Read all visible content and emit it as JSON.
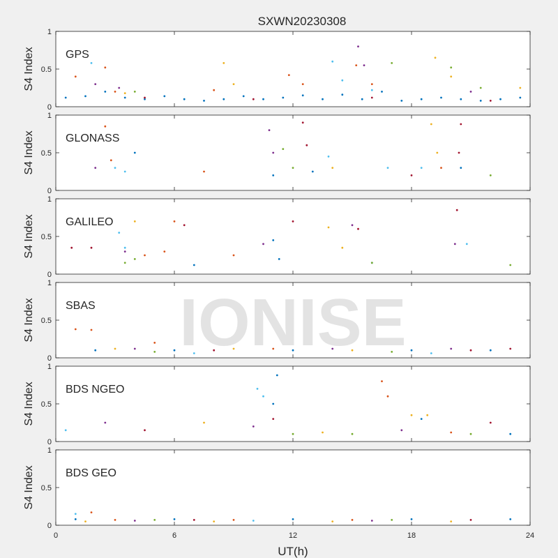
{
  "figure_title": "SXWN20230308",
  "watermark": "IONISE",
  "xlabel": "UT(h)",
  "x_ticks": [
    "0",
    "6",
    "12",
    "18",
    "24"
  ],
  "colors": [
    "#0072bd",
    "#d95319",
    "#edb120",
    "#7e2f8e",
    "#77ac30",
    "#4dbeee",
    "#a2142f"
  ],
  "chart_data": [
    {
      "type": "scatter",
      "panel": "GPS",
      "ylabel": "S4 Index",
      "ylim": [
        0,
        1
      ],
      "xlim": [
        0,
        24
      ],
      "y_ticks": [
        "0",
        "0.5",
        "1"
      ],
      "series": [
        {
          "values": [
            [
              0.5,
              0.12
            ],
            [
              1.5,
              0.14
            ],
            [
              2.5,
              0.2
            ],
            [
              3.5,
              0.12
            ],
            [
              4.5,
              0.1
            ],
            [
              5.5,
              0.14
            ],
            [
              6.5,
              0.1
            ],
            [
              7.5,
              0.08
            ],
            [
              8.5,
              0.1
            ],
            [
              9.5,
              0.14
            ],
            [
              10.5,
              0.1
            ],
            [
              11.5,
              0.12
            ],
            [
              12.5,
              0.15
            ],
            [
              13.5,
              0.1
            ],
            [
              14.5,
              0.16
            ],
            [
              15.5,
              0.1
            ],
            [
              16.5,
              0.2
            ],
            [
              17.5,
              0.08
            ],
            [
              18.5,
              0.1
            ],
            [
              19.5,
              0.12
            ],
            [
              20.5,
              0.1
            ],
            [
              21.5,
              0.08
            ],
            [
              22.5,
              0.1
            ],
            [
              23.5,
              0.12
            ]
          ]
        },
        {
          "values": [
            [
              1.0,
              0.4
            ],
            [
              2.5,
              0.52
            ],
            [
              3.0,
              0.2
            ],
            [
              8.0,
              0.22
            ],
            [
              11.8,
              0.42
            ],
            [
              12.5,
              0.3
            ],
            [
              15.2,
              0.55
            ],
            [
              16.0,
              0.3
            ]
          ]
        },
        {
          "values": [
            [
              3.5,
              0.18
            ],
            [
              8.5,
              0.58
            ],
            [
              9.0,
              0.3
            ],
            [
              19.2,
              0.65
            ],
            [
              20.0,
              0.4
            ],
            [
              23.5,
              0.25
            ]
          ]
        },
        {
          "values": [
            [
              2.0,
              0.3
            ],
            [
              3.2,
              0.25
            ],
            [
              15.3,
              0.8
            ],
            [
              15.6,
              0.55
            ],
            [
              21.0,
              0.2
            ]
          ]
        },
        {
          "values": [
            [
              4.0,
              0.2
            ],
            [
              17.0,
              0.58
            ],
            [
              20.0,
              0.52
            ],
            [
              21.5,
              0.25
            ]
          ]
        },
        {
          "values": [
            [
              1.8,
              0.58
            ],
            [
              14.0,
              0.6
            ],
            [
              14.5,
              0.35
            ],
            [
              16.0,
              0.22
            ]
          ]
        },
        {
          "values": [
            [
              4.5,
              0.12
            ],
            [
              10.0,
              0.1
            ],
            [
              16.0,
              0.12
            ],
            [
              22.0,
              0.08
            ]
          ]
        }
      ]
    },
    {
      "type": "scatter",
      "panel": "GLONASS",
      "ylabel": "S4 Index",
      "ylim": [
        0,
        1
      ],
      "xlim": [
        0,
        24
      ],
      "y_ticks": [
        "0",
        "0.5",
        "1"
      ],
      "series": [
        {
          "values": [
            [
              4.0,
              0.5
            ],
            [
              13.0,
              0.25
            ],
            [
              20.5,
              0.3
            ],
            [
              11.0,
              0.2
            ]
          ]
        },
        {
          "values": [
            [
              2.5,
              0.85
            ],
            [
              2.8,
              0.4
            ],
            [
              7.5,
              0.25
            ],
            [
              19.5,
              0.3
            ]
          ]
        },
        {
          "values": [
            [
              19.0,
              0.88
            ],
            [
              19.3,
              0.5
            ],
            [
              14.0,
              0.3
            ]
          ]
        },
        {
          "values": [
            [
              10.8,
              0.8
            ],
            [
              11.0,
              0.5
            ],
            [
              2.0,
              0.3
            ]
          ]
        },
        {
          "values": [
            [
              11.5,
              0.55
            ],
            [
              12.0,
              0.3
            ],
            [
              22.0,
              0.2
            ]
          ]
        },
        {
          "values": [
            [
              3.0,
              0.3
            ],
            [
              3.5,
              0.25
            ],
            [
              13.8,
              0.45
            ],
            [
              16.8,
              0.3
            ],
            [
              18.5,
              0.3
            ]
          ]
        },
        {
          "values": [
            [
              12.5,
              0.9
            ],
            [
              12.7,
              0.6
            ],
            [
              20.5,
              0.88
            ],
            [
              20.4,
              0.5
            ],
            [
              18.0,
              0.2
            ]
          ]
        }
      ]
    },
    {
      "type": "scatter",
      "panel": "GALILEO",
      "ylabel": "S4 Index",
      "ylim": [
        0,
        1
      ],
      "xlim": [
        0,
        24
      ],
      "y_ticks": [
        "0",
        "0.5",
        "1"
      ],
      "series": [
        {
          "values": [
            [
              7.0,
              0.12
            ],
            [
              11.0,
              0.45
            ],
            [
              11.3,
              0.2
            ],
            [
              16.0,
              0.15
            ]
          ]
        },
        {
          "values": [
            [
              4.5,
              0.25
            ],
            [
              5.5,
              0.3
            ],
            [
              6.0,
              0.7
            ],
            [
              9.0,
              0.25
            ]
          ]
        },
        {
          "values": [
            [
              4.0,
              0.7
            ],
            [
              13.8,
              0.62
            ],
            [
              14.5,
              0.35
            ]
          ]
        },
        {
          "values": [
            [
              3.5,
              0.3
            ],
            [
              10.5,
              0.4
            ],
            [
              15.0,
              0.65
            ],
            [
              20.2,
              0.4
            ]
          ]
        },
        {
          "values": [
            [
              3.5,
              0.15
            ],
            [
              4.0,
              0.2
            ],
            [
              16.0,
              0.15
            ],
            [
              23.0,
              0.12
            ]
          ]
        },
        {
          "values": [
            [
              3.2,
              0.55
            ],
            [
              3.5,
              0.35
            ],
            [
              20.8,
              0.4
            ]
          ]
        },
        {
          "values": [
            [
              0.8,
              0.35
            ],
            [
              1.8,
              0.35
            ],
            [
              6.5,
              0.65
            ],
            [
              12.0,
              0.7
            ],
            [
              15.3,
              0.6
            ],
            [
              20.3,
              0.85
            ]
          ]
        }
      ]
    },
    {
      "type": "scatter",
      "panel": "SBAS",
      "ylabel": "S4 Index",
      "ylim": [
        0,
        1
      ],
      "xlim": [
        0,
        24
      ],
      "y_ticks": [
        "0",
        "0.5",
        "1"
      ],
      "series": [
        {
          "values": [
            [
              2.0,
              0.1
            ],
            [
              6.0,
              0.1
            ],
            [
              12.0,
              0.1
            ],
            [
              18.0,
              0.1
            ],
            [
              22.0,
              0.1
            ]
          ]
        },
        {
          "values": [
            [
              1.0,
              0.38
            ],
            [
              1.8,
              0.37
            ],
            [
              5.0,
              0.2
            ],
            [
              11.0,
              0.12
            ]
          ]
        },
        {
          "values": [
            [
              3.0,
              0.12
            ],
            [
              9.0,
              0.12
            ],
            [
              15.0,
              0.1
            ]
          ]
        },
        {
          "values": [
            [
              4.0,
              0.12
            ],
            [
              14.0,
              0.12
            ],
            [
              20.0,
              0.12
            ]
          ]
        },
        {
          "values": [
            [
              5.0,
              0.08
            ],
            [
              17.0,
              0.08
            ]
          ]
        },
        {
          "values": [
            [
              7.0,
              0.06
            ],
            [
              19.0,
              0.06
            ]
          ]
        },
        {
          "values": [
            [
              8.0,
              0.1
            ],
            [
              21.0,
              0.1
            ],
            [
              23.0,
              0.12
            ]
          ]
        }
      ]
    },
    {
      "type": "scatter",
      "panel": "BDS NGEO",
      "ylabel": "S4 Index",
      "ylim": [
        0,
        1
      ],
      "xlim": [
        0,
        24
      ],
      "y_ticks": [
        "0",
        "0.5",
        "1"
      ],
      "series": [
        {
          "values": [
            [
              11.2,
              0.88
            ],
            [
              11.0,
              0.5
            ],
            [
              18.5,
              0.3
            ],
            [
              23.0,
              0.1
            ]
          ]
        },
        {
          "values": [
            [
              16.5,
              0.8
            ],
            [
              16.8,
              0.6
            ],
            [
              20.0,
              0.12
            ]
          ]
        },
        {
          "values": [
            [
              7.5,
              0.25
            ],
            [
              18.0,
              0.35
            ],
            [
              18.8,
              0.35
            ],
            [
              13.5,
              0.12
            ]
          ]
        },
        {
          "values": [
            [
              2.5,
              0.25
            ],
            [
              10.0,
              0.2
            ],
            [
              17.5,
              0.15
            ]
          ]
        },
        {
          "values": [
            [
              12.0,
              0.1
            ],
            [
              15.0,
              0.1
            ],
            [
              21.0,
              0.1
            ]
          ]
        },
        {
          "values": [
            [
              10.2,
              0.7
            ],
            [
              10.5,
              0.6
            ],
            [
              0.5,
              0.15
            ]
          ]
        },
        {
          "values": [
            [
              11.0,
              0.3
            ],
            [
              4.5,
              0.15
            ],
            [
              22.0,
              0.25
            ]
          ]
        }
      ]
    },
    {
      "type": "scatter",
      "panel": "BDS GEO",
      "ylabel": "S4 Index",
      "ylim": [
        0,
        1
      ],
      "xlim": [
        0,
        24
      ],
      "y_ticks": [
        "0",
        "0.5",
        "1"
      ],
      "series": [
        {
          "values": [
            [
              1.0,
              0.08
            ],
            [
              6.0,
              0.08
            ],
            [
              12.0,
              0.08
            ],
            [
              18.0,
              0.08
            ],
            [
              23.0,
              0.08
            ]
          ]
        },
        {
          "values": [
            [
              1.8,
              0.17
            ],
            [
              3.0,
              0.07
            ],
            [
              9.0,
              0.07
            ],
            [
              15.0,
              0.07
            ]
          ]
        },
        {
          "values": [
            [
              1.5,
              0.05
            ],
            [
              8.0,
              0.05
            ],
            [
              14.0,
              0.05
            ],
            [
              20.0,
              0.05
            ]
          ]
        },
        {
          "values": [
            [
              4.0,
              0.06
            ],
            [
              16.0,
              0.06
            ]
          ]
        },
        {
          "values": [
            [
              5.0,
              0.07
            ],
            [
              17.0,
              0.07
            ]
          ]
        },
        {
          "values": [
            [
              1.0,
              0.15
            ],
            [
              10.0,
              0.06
            ]
          ]
        },
        {
          "values": [
            [
              7.0,
              0.07
            ],
            [
              21.0,
              0.07
            ]
          ]
        }
      ]
    }
  ]
}
